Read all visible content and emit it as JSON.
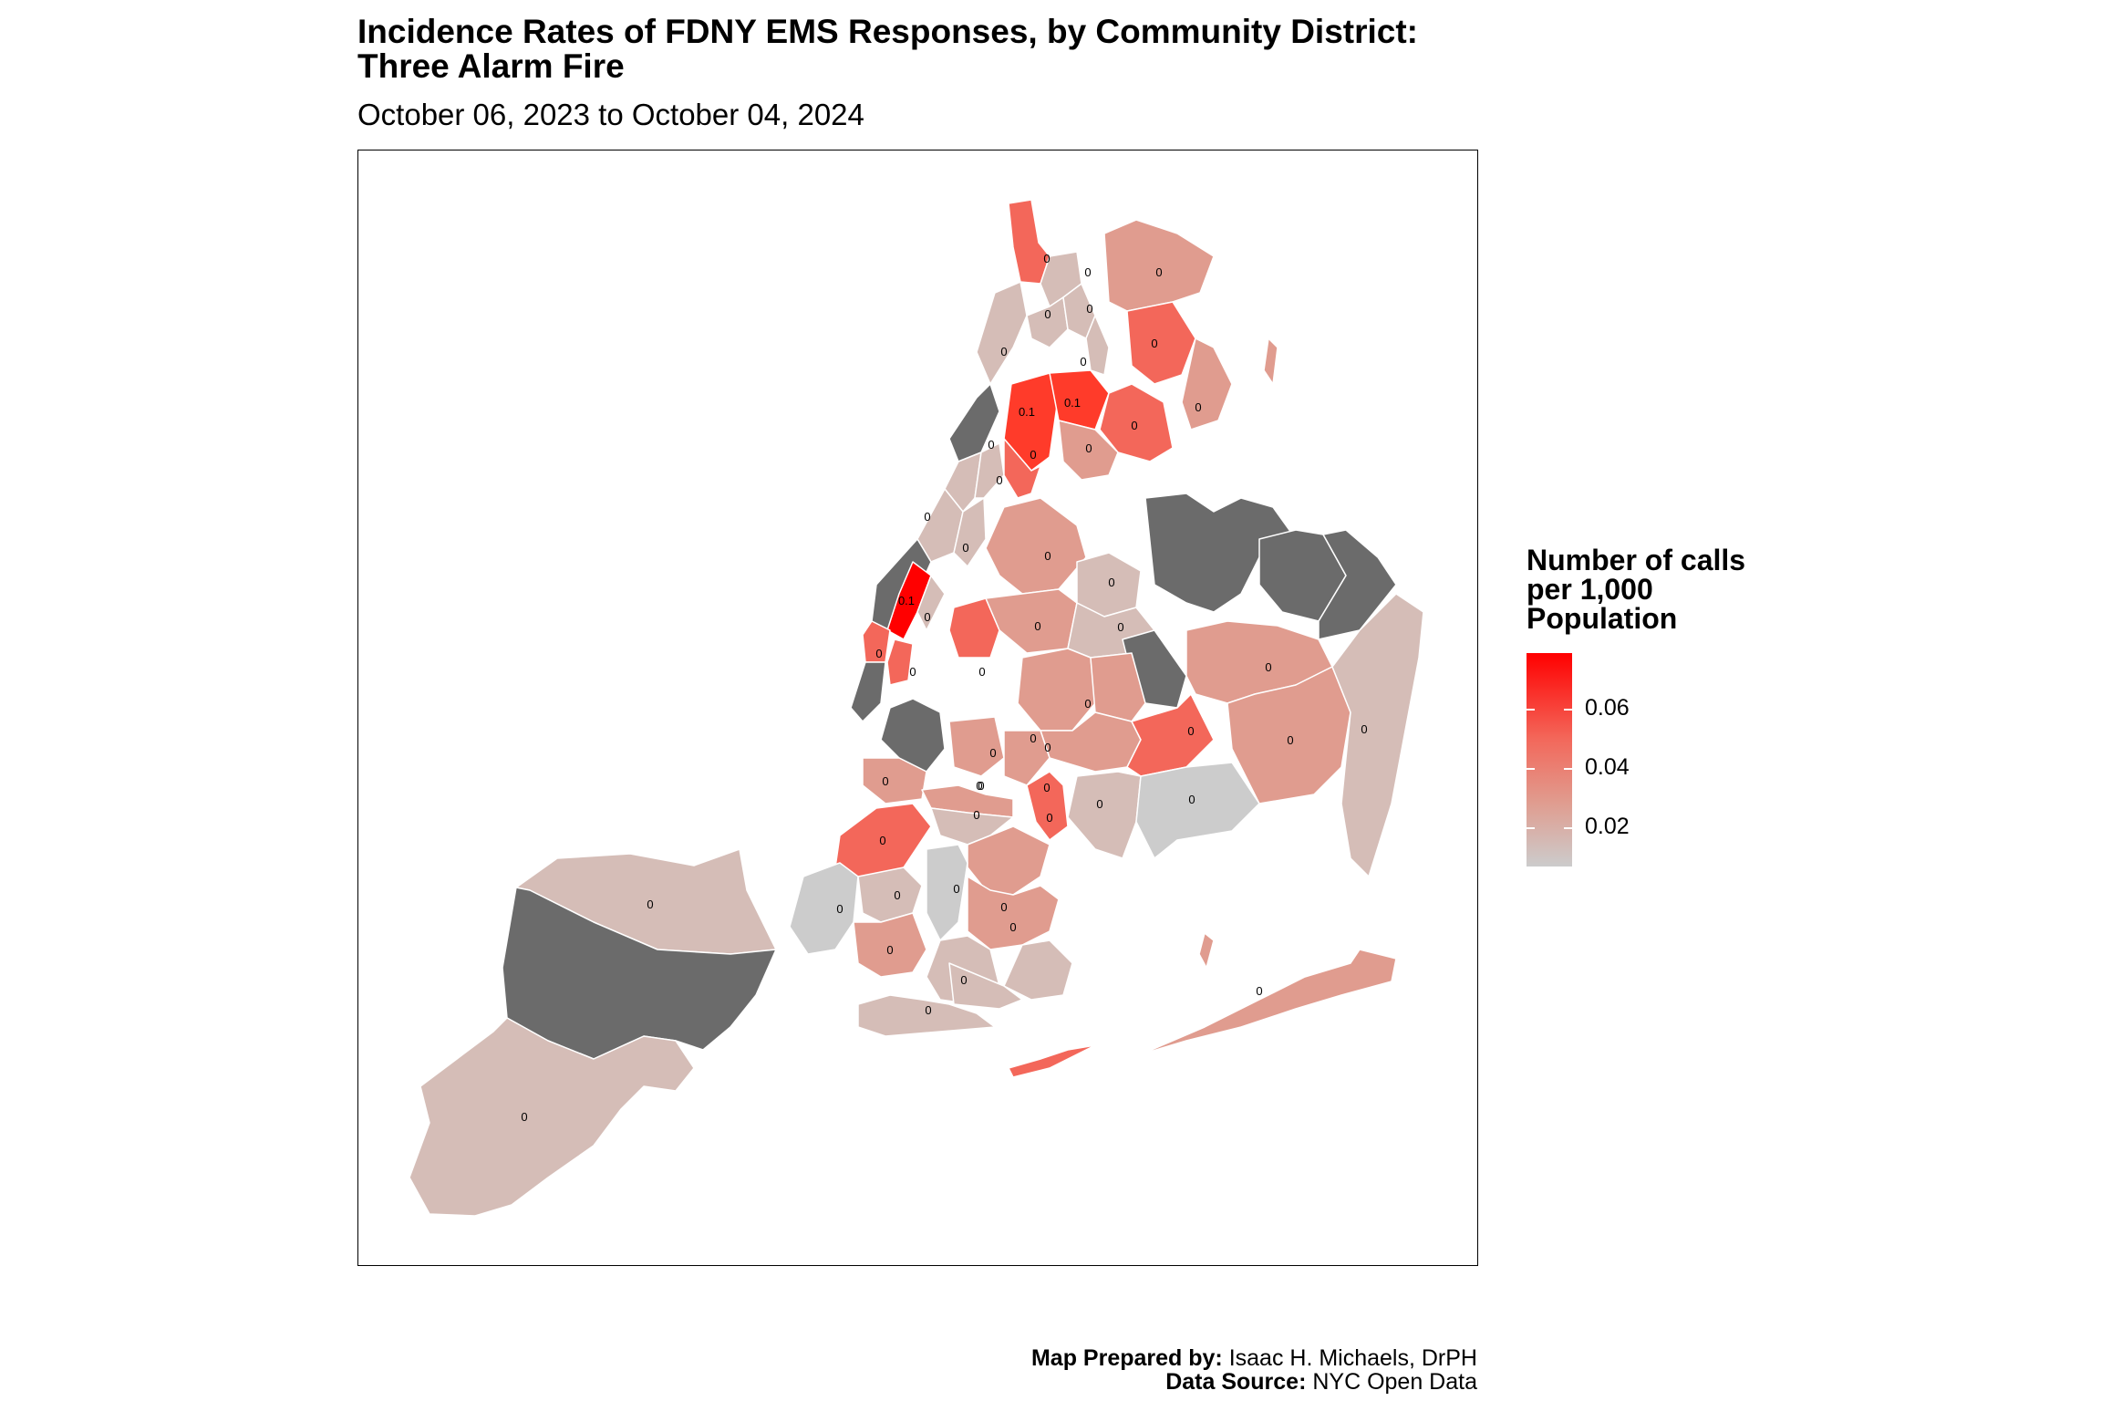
{
  "title_line1": "Incidence Rates of FDNY EMS Responses, by Community District:",
  "title_line2": "Three Alarm Fire",
  "subtitle": "October 06, 2023 to October 04, 2024",
  "legend": {
    "title_line1": "Number of calls",
    "title_line2": "per 1,000",
    "title_line3": "Population",
    "ticks": [
      "0.06",
      "0.04",
      "0.02"
    ],
    "colors": {
      "high": "#ff0000",
      "mid": "#f3675a",
      "low": "#cccccc",
      "missing": "#6b6b6b"
    }
  },
  "caption": {
    "line1_bold": "Map Prepared by:",
    "line1_text": " Isaac H. Michaels, DrPH",
    "line2_bold": "Data Source:",
    "line2_text": " NYC Open Data"
  },
  "district_labels": {
    "zero": "0",
    "tenth": "0.1"
  }
}
